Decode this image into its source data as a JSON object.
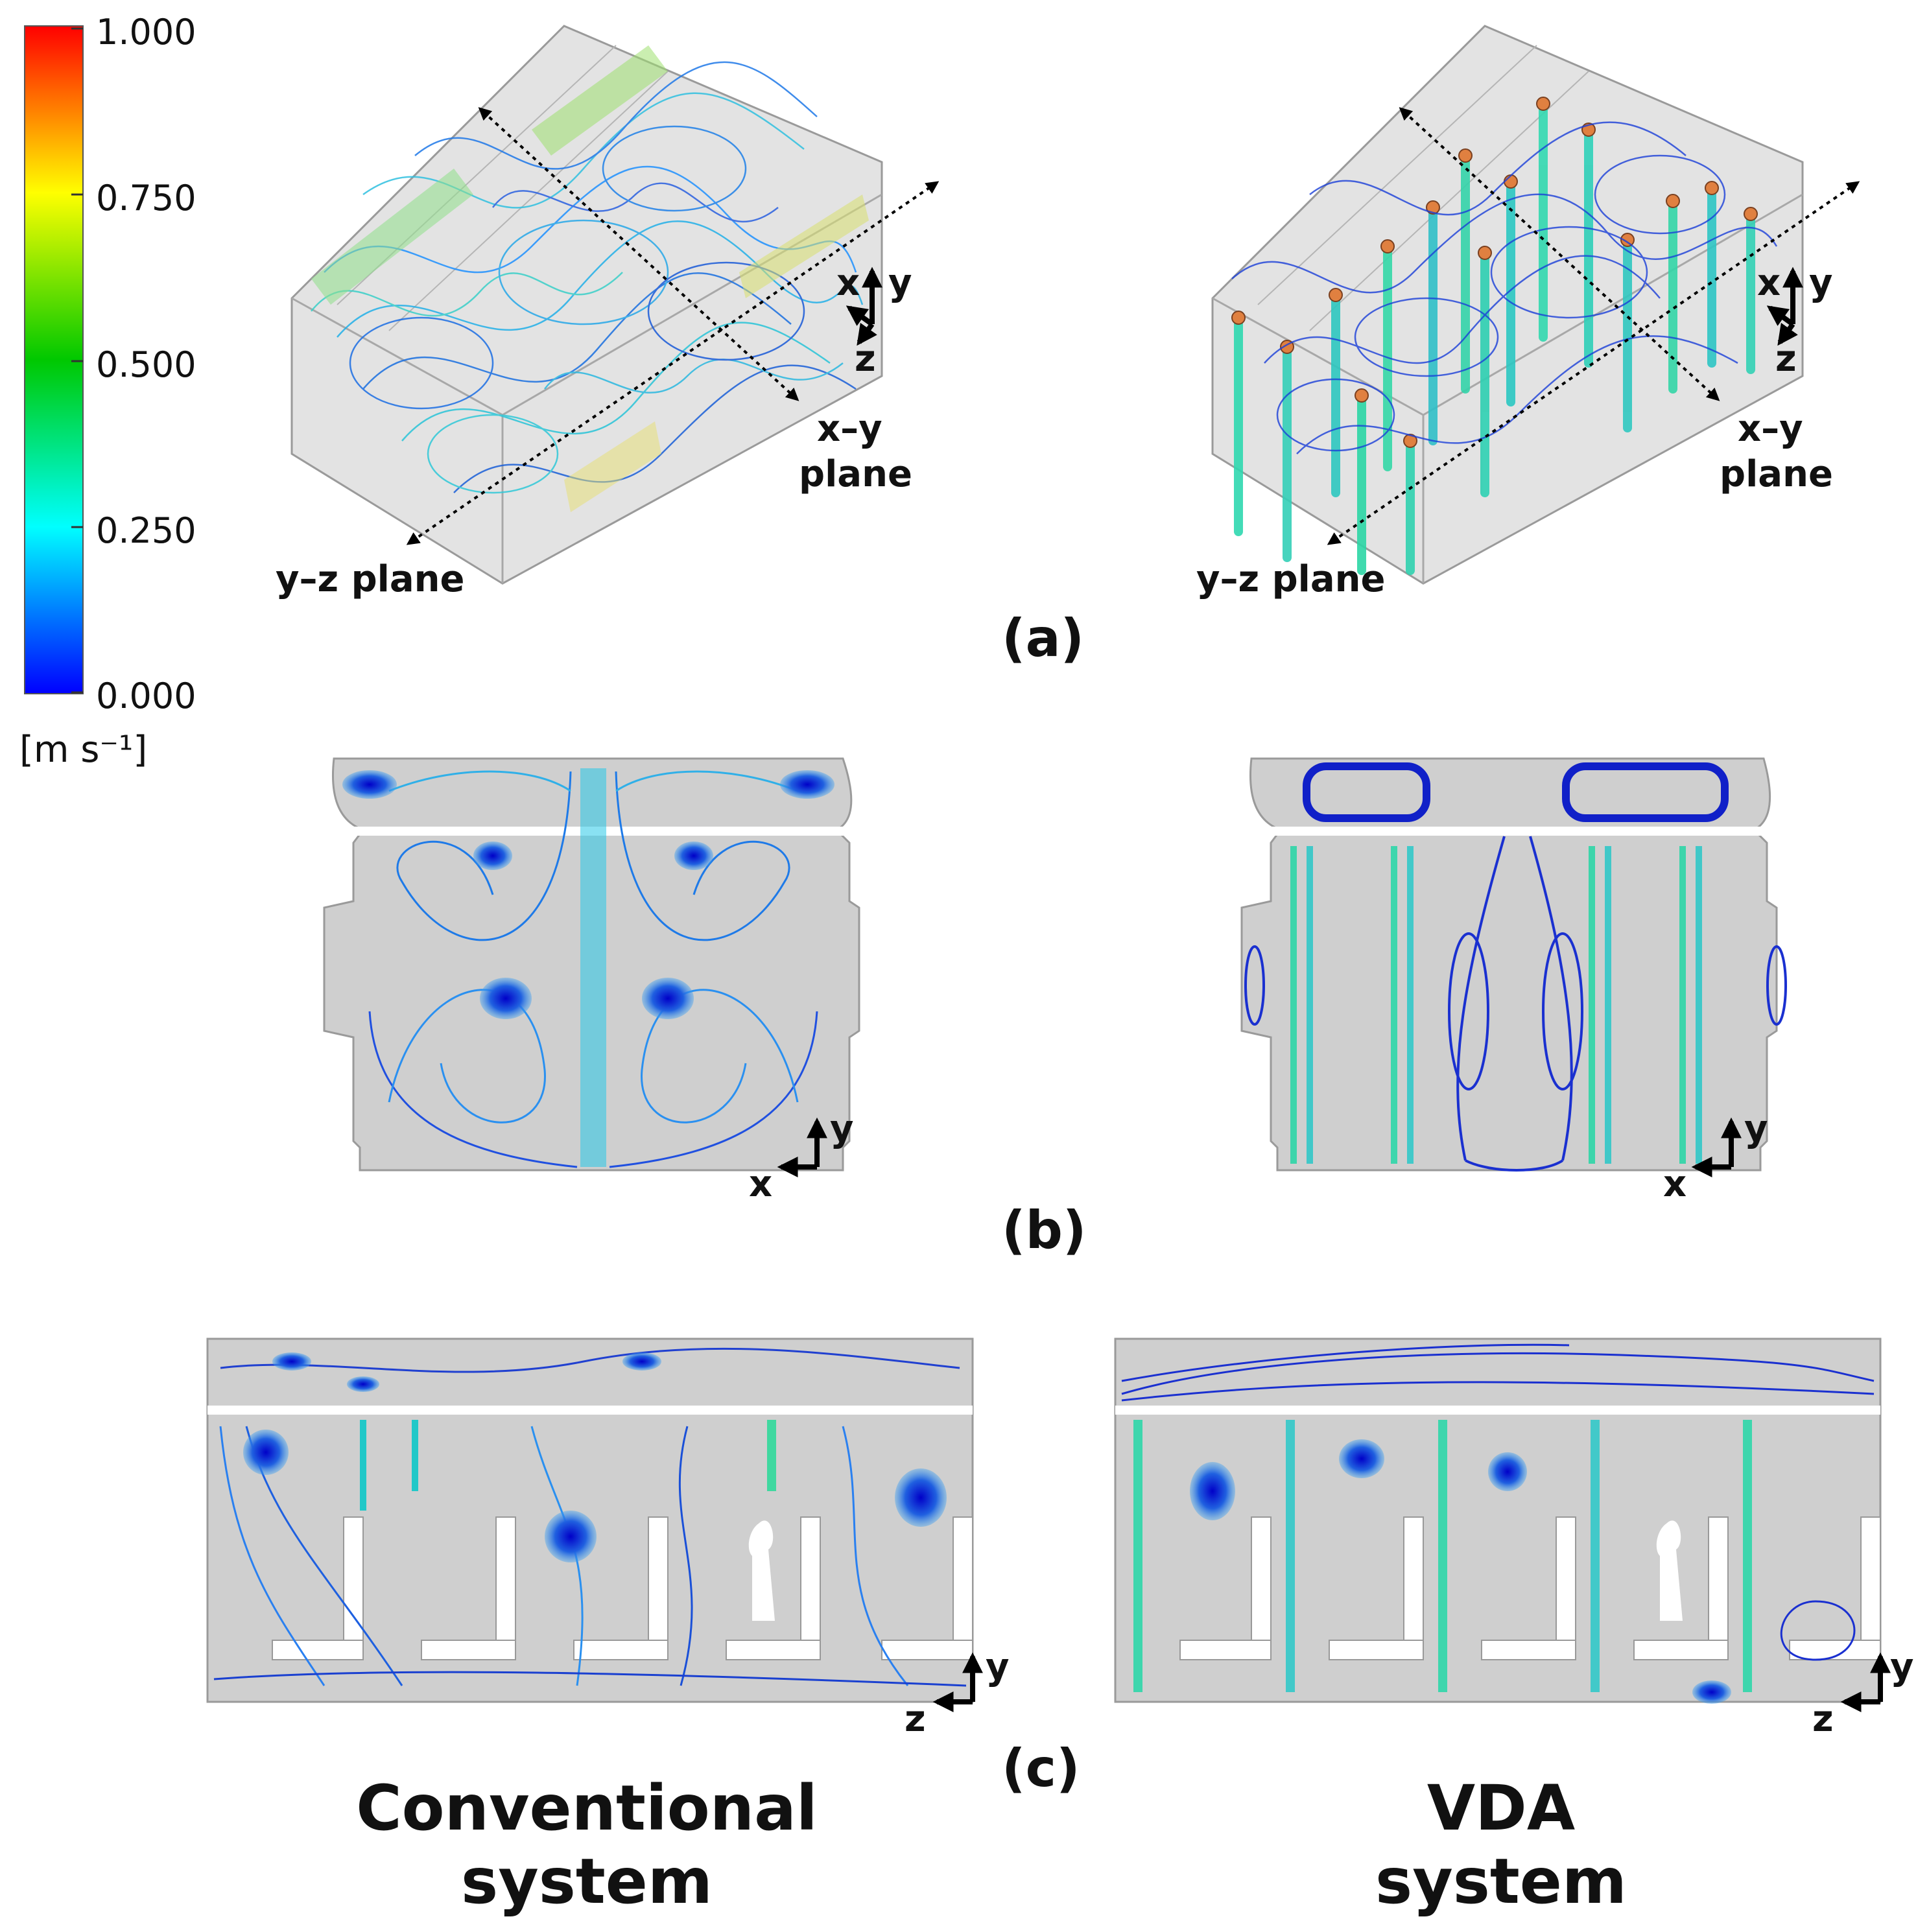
{
  "colorbar": {
    "ticks": [
      "1.000",
      "0.750",
      "0.500",
      "0.250",
      "0.000"
    ],
    "unit": "[m s⁻¹]",
    "colors": [
      "#ff0000",
      "#ffff00",
      "#00c800",
      "#00ffff",
      "#0000ff"
    ]
  },
  "panels": {
    "a": {
      "label": "(a)",
      "left": {
        "plane_xy": "x–y",
        "plane_word": "plane",
        "plane_yz": "y–z plane"
      },
      "right": {
        "plane_xy": "x–y",
        "plane_word": "plane",
        "plane_yz": "y–z plane"
      },
      "axes": {
        "x": "x",
        "y": "y",
        "z": "z"
      }
    },
    "b": {
      "label": "(b)",
      "axes": {
        "x": "x",
        "y": "y"
      }
    },
    "c": {
      "label": "(c)",
      "axes": {
        "z": "z",
        "y": "y"
      }
    }
  },
  "columns": {
    "left": {
      "line1": "Conventional",
      "line2": "system"
    },
    "right": {
      "line1": "VDA",
      "line2": "system"
    }
  },
  "style": {
    "background": "#ffffff",
    "domain_fill": "#cfcfcf",
    "streamline": "#1f6fe0",
    "jet": "#22c9a8"
  }
}
